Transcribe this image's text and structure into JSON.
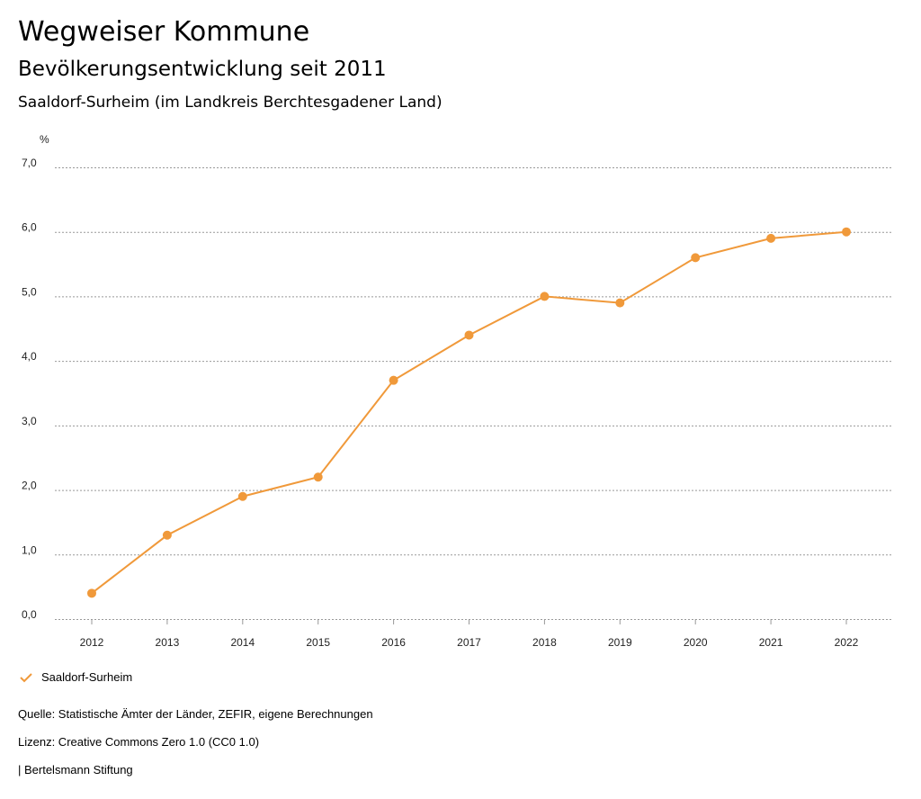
{
  "header": {
    "title": "Wegweiser Kommune",
    "subtitle": "Bevölkerungsentwicklung seit 2011",
    "region": "Saaldorf-Surheim (im Landkreis Berchtesgadener Land)"
  },
  "chart_data": {
    "type": "line",
    "ylabel": "%",
    "ylim": [
      0,
      7
    ],
    "yticks": [
      "0,0",
      "1,0",
      "2,0",
      "3,0",
      "4,0",
      "5,0",
      "6,0",
      "7,0"
    ],
    "grid": true,
    "categories": [
      "2012",
      "2013",
      "2014",
      "2015",
      "2016",
      "2017",
      "2018",
      "2019",
      "2020",
      "2021",
      "2022"
    ],
    "series": [
      {
        "name": "Saaldorf-Surheim",
        "color": "#f0993a",
        "values": [
          0.4,
          1.3,
          1.9,
          2.2,
          3.7,
          4.4,
          5.0,
          4.9,
          5.6,
          5.9,
          6.0
        ]
      }
    ],
    "legend": "bottom-left"
  },
  "footer": {
    "source": "Quelle: Statistische Ämter der Länder, ZEFIR, eigene Berechnungen",
    "license": "Lizenz: Creative Commons Zero 1.0 (CC0 1.0)",
    "publisher": "| Bertelsmann Stiftung"
  }
}
